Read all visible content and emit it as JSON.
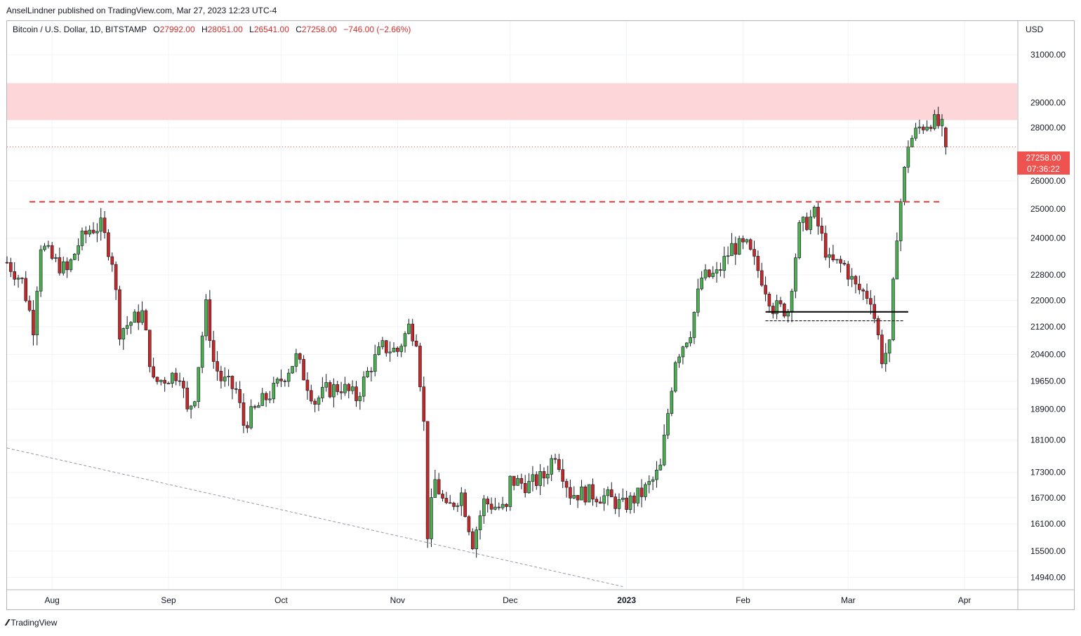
{
  "header": {
    "author": "AnselLindner",
    "published_text": "AnselLindner published on TradingView.com, Mar 27, 2023 12:23 UTC-4"
  },
  "legend": {
    "symbol": "Bitcoin / U.S. Dollar, 1D, BITSTAMP",
    "open_label": "O",
    "open": "27992.00",
    "high_label": "H",
    "high": "28051.00",
    "low_label": "L",
    "low": "26541.00",
    "close_label": "C",
    "close": "27258.00",
    "change": "−746.00 (−2.66%)"
  },
  "axis": {
    "currency": "USD",
    "price_labels": [
      "31000.00",
      "29000.00",
      "28000.00",
      "26000.00",
      "25000.00",
      "24000.00",
      "22800.00",
      "22000.00",
      "21200.00",
      "20400.00",
      "19650.00",
      "18900.00",
      "18100.00",
      "17300.00",
      "16700.00",
      "16100.00",
      "15500.00",
      "14940.00"
    ],
    "time_labels": [
      "Aug",
      "Sep",
      "Oct",
      "Nov",
      "Dec",
      "2023",
      "Feb",
      "Mar",
      "Apr"
    ]
  },
  "last_price": {
    "price": "27258.00",
    "countdown": "07:36:22"
  },
  "colors": {
    "up": "#26a69a",
    "up_body": "#4caf50",
    "down": "#c62828",
    "resistance_zone": "#fdd6d9",
    "dashed_line": "#e53935",
    "trendline": "#9598a1"
  },
  "footer": {
    "brand": "TradingView"
  },
  "chart_data": {
    "type": "candlestick",
    "symbol": "Bitcoin / U.S. Dollar, 1D, BITSTAMP",
    "x_range": [
      "2022-07-20",
      "2023-04-15"
    ],
    "y_range": [
      14700,
      32500
    ],
    "y_scale": "log",
    "annotations": {
      "resistance_zone": [
        28300,
        29800
      ],
      "dashed_resistance": {
        "price": 25250,
        "from": "2022-07-26",
        "to": "2023-03-26"
      },
      "support_line": {
        "price": 21650,
        "from": "2023-02-07",
        "to": "2023-03-17"
      },
      "support_line_dashed": {
        "price": 21380,
        "from": "2023-02-07",
        "to": "2023-03-16"
      },
      "trendline": {
        "from": [
          "2022-07-20",
          17900
        ],
        "to": [
          "2022-12-31",
          14750
        ]
      }
    },
    "daily_close_path": [
      [
        "2022-07-20",
        23200
      ],
      [
        "2022-07-24",
        22600
      ],
      [
        "2022-07-27",
        21200
      ],
      [
        "2022-07-29",
        23800
      ],
      [
        "2022-08-01",
        23300
      ],
      [
        "2022-08-05",
        22900
      ],
      [
        "2022-08-08",
        23800
      ],
      [
        "2022-08-11",
        24300
      ],
      [
        "2022-08-14",
        24400
      ],
      [
        "2022-08-17",
        23300
      ],
      [
        "2022-08-19",
        21100
      ],
      [
        "2022-08-25",
        21600
      ],
      [
        "2022-08-28",
        19600
      ],
      [
        "2022-09-04",
        19900
      ],
      [
        "2022-09-06",
        18800
      ],
      [
        "2022-09-08",
        19300
      ],
      [
        "2022-09-11",
        21800
      ],
      [
        "2022-09-13",
        20200
      ],
      [
        "2022-09-15",
        19700
      ],
      [
        "2022-09-19",
        19400
      ],
      [
        "2022-09-21",
        18500
      ],
      [
        "2022-09-26",
        19100
      ],
      [
        "2022-09-29",
        19400
      ],
      [
        "2022-10-05",
        20300
      ],
      [
        "2022-10-10",
        19100
      ],
      [
        "2022-10-13",
        19400
      ],
      [
        "2022-10-17",
        19500
      ],
      [
        "2022-10-21",
        19200
      ],
      [
        "2022-10-25",
        20100
      ],
      [
        "2022-10-28",
        20600
      ],
      [
        "2022-11-01",
        20500
      ],
      [
        "2022-11-04",
        21200
      ],
      [
        "2022-11-06",
        20900
      ],
      [
        "2022-11-08",
        18500
      ],
      [
        "2022-11-09",
        15900
      ],
      [
        "2022-11-11",
        17100
      ],
      [
        "2022-11-14",
        16400
      ],
      [
        "2022-11-18",
        16800
      ],
      [
        "2022-11-21",
        15700
      ],
      [
        "2022-11-24",
        16600
      ],
      [
        "2022-11-30",
        16400
      ],
      [
        "2022-12-01",
        17100
      ],
      [
        "2022-12-06",
        17000
      ],
      [
        "2022-12-10",
        17200
      ],
      [
        "2022-12-13",
        17800
      ],
      [
        "2022-12-15",
        17300
      ],
      [
        "2022-12-17",
        16800
      ],
      [
        "2022-12-22",
        16800
      ],
      [
        "2022-12-27",
        16700
      ],
      [
        "2022-12-31",
        16500
      ],
      [
        "2023-01-05",
        16800
      ],
      [
        "2023-01-08",
        17100
      ],
      [
        "2023-01-10",
        17400
      ],
      [
        "2023-01-12",
        18800
      ],
      [
        "2023-01-14",
        20300
      ],
      [
        "2023-01-18",
        21100
      ],
      [
        "2023-01-21",
        22700
      ],
      [
        "2023-01-25",
        22800
      ],
      [
        "2023-01-29",
        23700
      ],
      [
        "2023-02-02",
        23700
      ],
      [
        "2023-02-06",
        22700
      ],
      [
        "2023-02-09",
        21800
      ],
      [
        "2023-02-13",
        21700
      ],
      [
        "2023-02-16",
        24300
      ],
      [
        "2023-02-20",
        24800
      ],
      [
        "2023-02-24",
        23200
      ],
      [
        "2023-02-28",
        23100
      ],
      [
        "2023-03-03",
        22400
      ],
      [
        "2023-03-07",
        22100
      ],
      [
        "2023-03-10",
        20300
      ],
      [
        "2023-03-12",
        20600
      ],
      [
        "2023-03-14",
        24200
      ],
      [
        "2023-03-17",
        27400
      ],
      [
        "2023-03-20",
        28000
      ],
      [
        "2023-03-23",
        28300
      ],
      [
        "2023-03-26",
        27992
      ],
      [
        "2023-03-27",
        27258
      ]
    ]
  }
}
